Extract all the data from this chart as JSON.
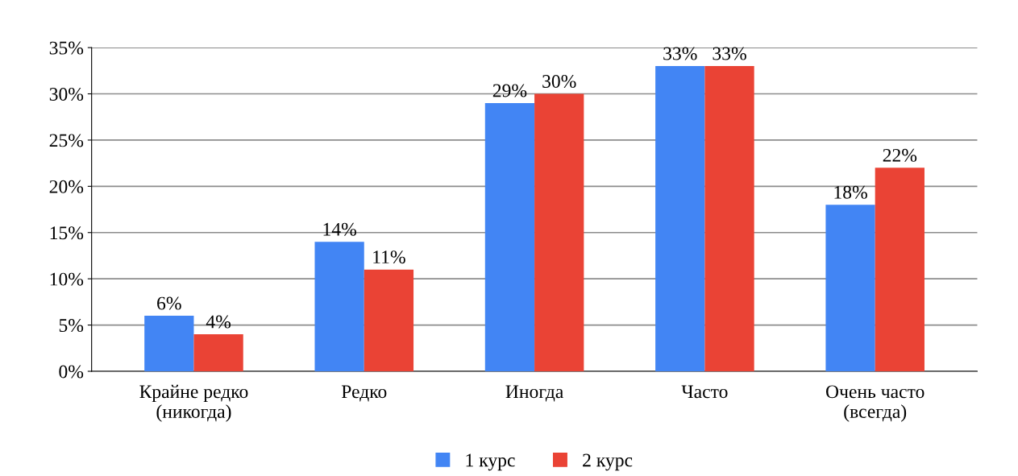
{
  "chart_data": {
    "type": "bar",
    "categories": [
      "Крайне редко\n(никогда)",
      "Редко",
      "Иногда",
      "Часто",
      "Очень часто\n(всегда)"
    ],
    "series": [
      {
        "name": "1 курс",
        "color": "#4285f4",
        "values": [
          6,
          14,
          29,
          33,
          18
        ],
        "value_labels": [
          "6%",
          "14%",
          "29%",
          "33%",
          "18%"
        ]
      },
      {
        "name": "2 курс",
        "color": "#ea4335",
        "values": [
          4,
          11,
          30,
          33,
          22
        ],
        "value_labels": [
          "4%",
          "11%",
          "30%",
          "33%",
          "22%"
        ]
      }
    ],
    "ylim": [
      0,
      35
    ],
    "yticks": [
      {
        "value": 0,
        "label": "0%"
      },
      {
        "value": 5,
        "label": "5%"
      },
      {
        "value": 10,
        "label": "10%"
      },
      {
        "value": 15,
        "label": "15%"
      },
      {
        "value": 20,
        "label": "20%"
      },
      {
        "value": 25,
        "label": "25%"
      },
      {
        "value": 30,
        "label": "30%"
      },
      {
        "value": 35,
        "label": "35%"
      }
    ],
    "grid": "y",
    "legend": "bottom"
  }
}
